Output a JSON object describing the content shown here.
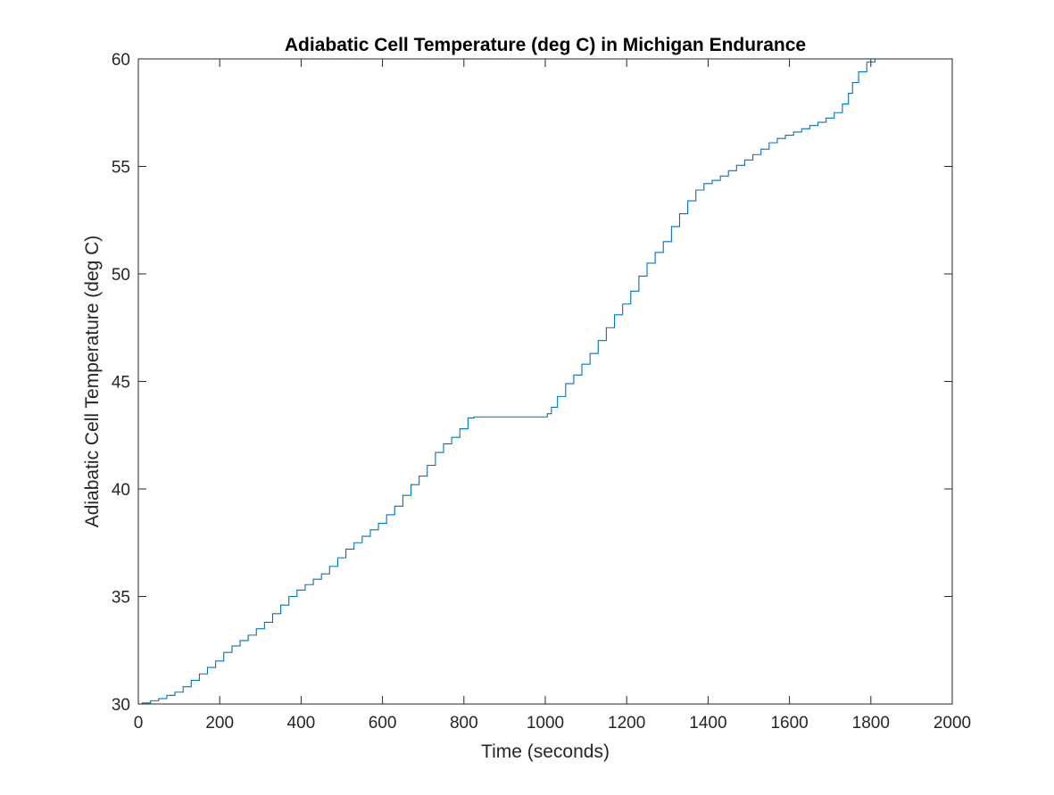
{
  "colors": {
    "background": "#ffffff",
    "axes": "#262626",
    "series": "#0072BD"
  },
  "chart_data": {
    "type": "line",
    "title": "Adiabatic Cell Temperature (deg C) in Michigan Endurance",
    "xlabel": "Time (seconds)",
    "ylabel": "Adiabatic Cell Temperature (deg C)",
    "xlim": [
      0,
      2000
    ],
    "ylim": [
      30,
      60
    ],
    "xticks": [
      0,
      200,
      400,
      600,
      800,
      1000,
      1200,
      1400,
      1600,
      1800,
      2000
    ],
    "yticks": [
      30,
      35,
      40,
      45,
      50,
      55,
      60
    ],
    "xtick_labels": [
      "0",
      "200",
      "400",
      "600",
      "800",
      "1000",
      "1200",
      "1400",
      "1600",
      "1800",
      "2000"
    ],
    "ytick_labels": [
      "30",
      "35",
      "40",
      "45",
      "50",
      "55",
      "60"
    ],
    "grid": false,
    "legend": "none",
    "series": [
      {
        "x": [
          0,
          20,
          40,
          60,
          80,
          100,
          120,
          140,
          160,
          180,
          200,
          220,
          240,
          260,
          280,
          300,
          320,
          340,
          360,
          380,
          400,
          420,
          440,
          460,
          480,
          500,
          520,
          540,
          560,
          580,
          600,
          620,
          640,
          660,
          680,
          700,
          720,
          740,
          760,
          780,
          800,
          820,
          830,
          900,
          1000,
          1010,
          1020,
          1040,
          1060,
          1080,
          1100,
          1120,
          1140,
          1160,
          1180,
          1200,
          1220,
          1240,
          1260,
          1280,
          1300,
          1320,
          1340,
          1360,
          1380,
          1400,
          1420,
          1440,
          1460,
          1480,
          1500,
          1520,
          1540,
          1560,
          1580,
          1600,
          1620,
          1640,
          1660,
          1680,
          1700,
          1720,
          1740,
          1750,
          1760,
          1780,
          1800,
          1820
        ],
        "y": [
          30.0,
          30.05,
          30.15,
          30.25,
          30.4,
          30.55,
          30.8,
          31.1,
          31.4,
          31.7,
          32.0,
          32.4,
          32.7,
          32.95,
          33.2,
          33.5,
          33.8,
          34.2,
          34.6,
          35.0,
          35.3,
          35.55,
          35.8,
          36.05,
          36.4,
          36.8,
          37.2,
          37.5,
          37.8,
          38.1,
          38.4,
          38.8,
          39.2,
          39.7,
          40.2,
          40.6,
          41.1,
          41.7,
          42.1,
          42.4,
          42.8,
          43.3,
          43.35,
          43.35,
          43.35,
          43.5,
          43.8,
          44.3,
          44.9,
          45.3,
          45.8,
          46.3,
          46.9,
          47.5,
          48.1,
          48.6,
          49.2,
          49.9,
          50.5,
          51.0,
          51.5,
          52.2,
          52.8,
          53.4,
          53.9,
          54.2,
          54.35,
          54.55,
          54.8,
          55.05,
          55.3,
          55.55,
          55.8,
          56.1,
          56.3,
          56.45,
          56.6,
          56.75,
          56.9,
          57.05,
          57.25,
          57.5,
          57.9,
          58.4,
          58.9,
          59.4,
          59.85,
          60.0
        ]
      }
    ]
  }
}
